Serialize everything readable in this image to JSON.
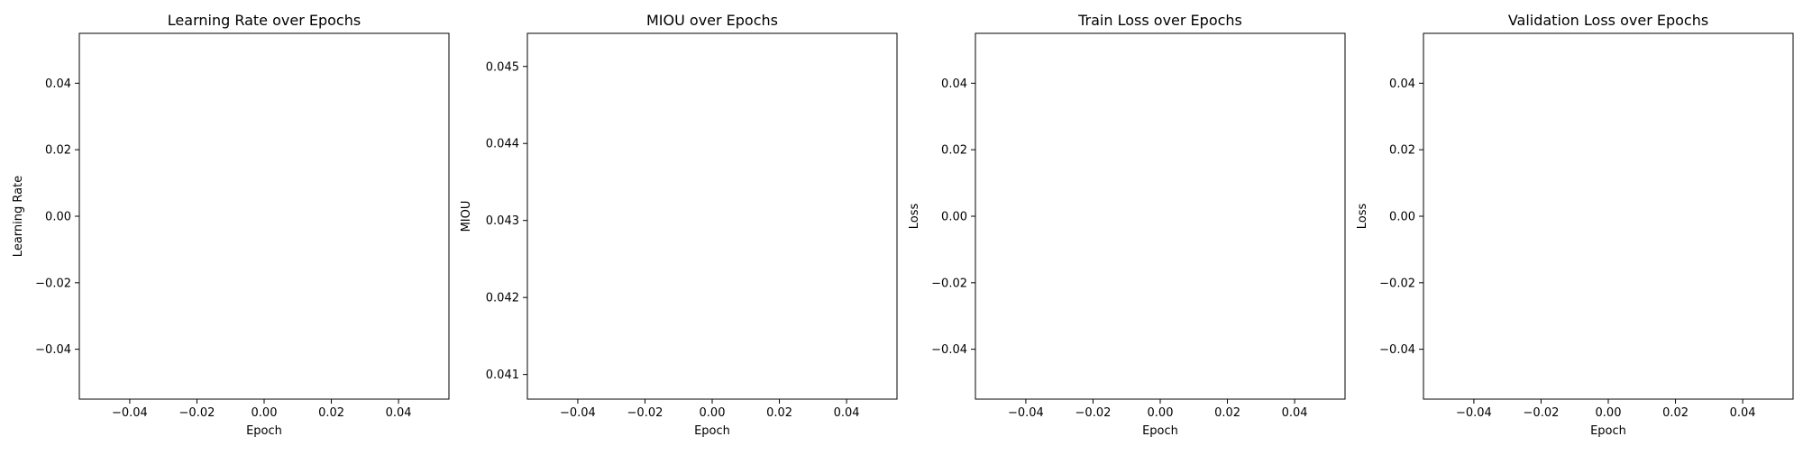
{
  "chart_data": [
    {
      "type": "line",
      "title": "Learning Rate over Epochs",
      "xlabel": "Epoch",
      "ylabel": "Learning Rate",
      "xlim": [
        -0.055,
        0.055
      ],
      "ylim": [
        -0.055,
        0.055
      ],
      "x_ticks": [
        -0.04,
        -0.02,
        0.0,
        0.02,
        0.04
      ],
      "x_tick_labels": [
        "−0.04",
        "−0.02",
        "0.00",
        "0.02",
        "0.04"
      ],
      "y_ticks": [
        -0.04,
        -0.02,
        0.0,
        0.02,
        0.04
      ],
      "y_tick_labels": [
        "−0.04",
        "−0.02",
        "0.00",
        "0.02",
        "0.04"
      ],
      "grid": false,
      "series": [
        {
          "x": [],
          "y": []
        }
      ]
    },
    {
      "type": "line",
      "title": "MIOU over Epochs",
      "xlabel": "Epoch",
      "ylabel": "MIOU",
      "xlim": [
        -0.055,
        0.055
      ],
      "ylim": [
        0.04068,
        0.04543
      ],
      "x_ticks": [
        -0.04,
        -0.02,
        0.0,
        0.02,
        0.04
      ],
      "x_tick_labels": [
        "−0.04",
        "−0.02",
        "0.00",
        "0.02",
        "0.04"
      ],
      "y_ticks": [
        0.041,
        0.042,
        0.043,
        0.044,
        0.045
      ],
      "y_tick_labels": [
        "0.041",
        "0.042",
        "0.043",
        "0.044",
        "0.045"
      ],
      "grid": false,
      "series": [
        {
          "x": [],
          "y": []
        }
      ]
    },
    {
      "type": "line",
      "title": "Train Loss over Epochs",
      "xlabel": "Epoch",
      "ylabel": "Loss",
      "xlim": [
        -0.055,
        0.055
      ],
      "ylim": [
        -0.055,
        0.055
      ],
      "x_ticks": [
        -0.04,
        -0.02,
        0.0,
        0.02,
        0.04
      ],
      "x_tick_labels": [
        "−0.04",
        "−0.02",
        "0.00",
        "0.02",
        "0.04"
      ],
      "y_ticks": [
        -0.04,
        -0.02,
        0.0,
        0.02,
        0.04
      ],
      "y_tick_labels": [
        "−0.04",
        "−0.02",
        "0.00",
        "0.02",
        "0.04"
      ],
      "grid": false,
      "series": [
        {
          "x": [],
          "y": []
        }
      ]
    },
    {
      "type": "line",
      "title": "Validation Loss over Epochs",
      "xlabel": "Epoch",
      "ylabel": "Loss",
      "xlim": [
        -0.055,
        0.055
      ],
      "ylim": [
        -0.055,
        0.055
      ],
      "x_ticks": [
        -0.04,
        -0.02,
        0.0,
        0.02,
        0.04
      ],
      "x_tick_labels": [
        "−0.04",
        "−0.02",
        "0.00",
        "0.02",
        "0.04"
      ],
      "y_ticks": [
        -0.04,
        -0.02,
        0.0,
        0.02,
        0.04
      ],
      "y_tick_labels": [
        "−0.04",
        "−0.02",
        "0.00",
        "0.02",
        "0.04"
      ],
      "grid": false,
      "series": [
        {
          "x": [],
          "y": []
        }
      ]
    }
  ]
}
